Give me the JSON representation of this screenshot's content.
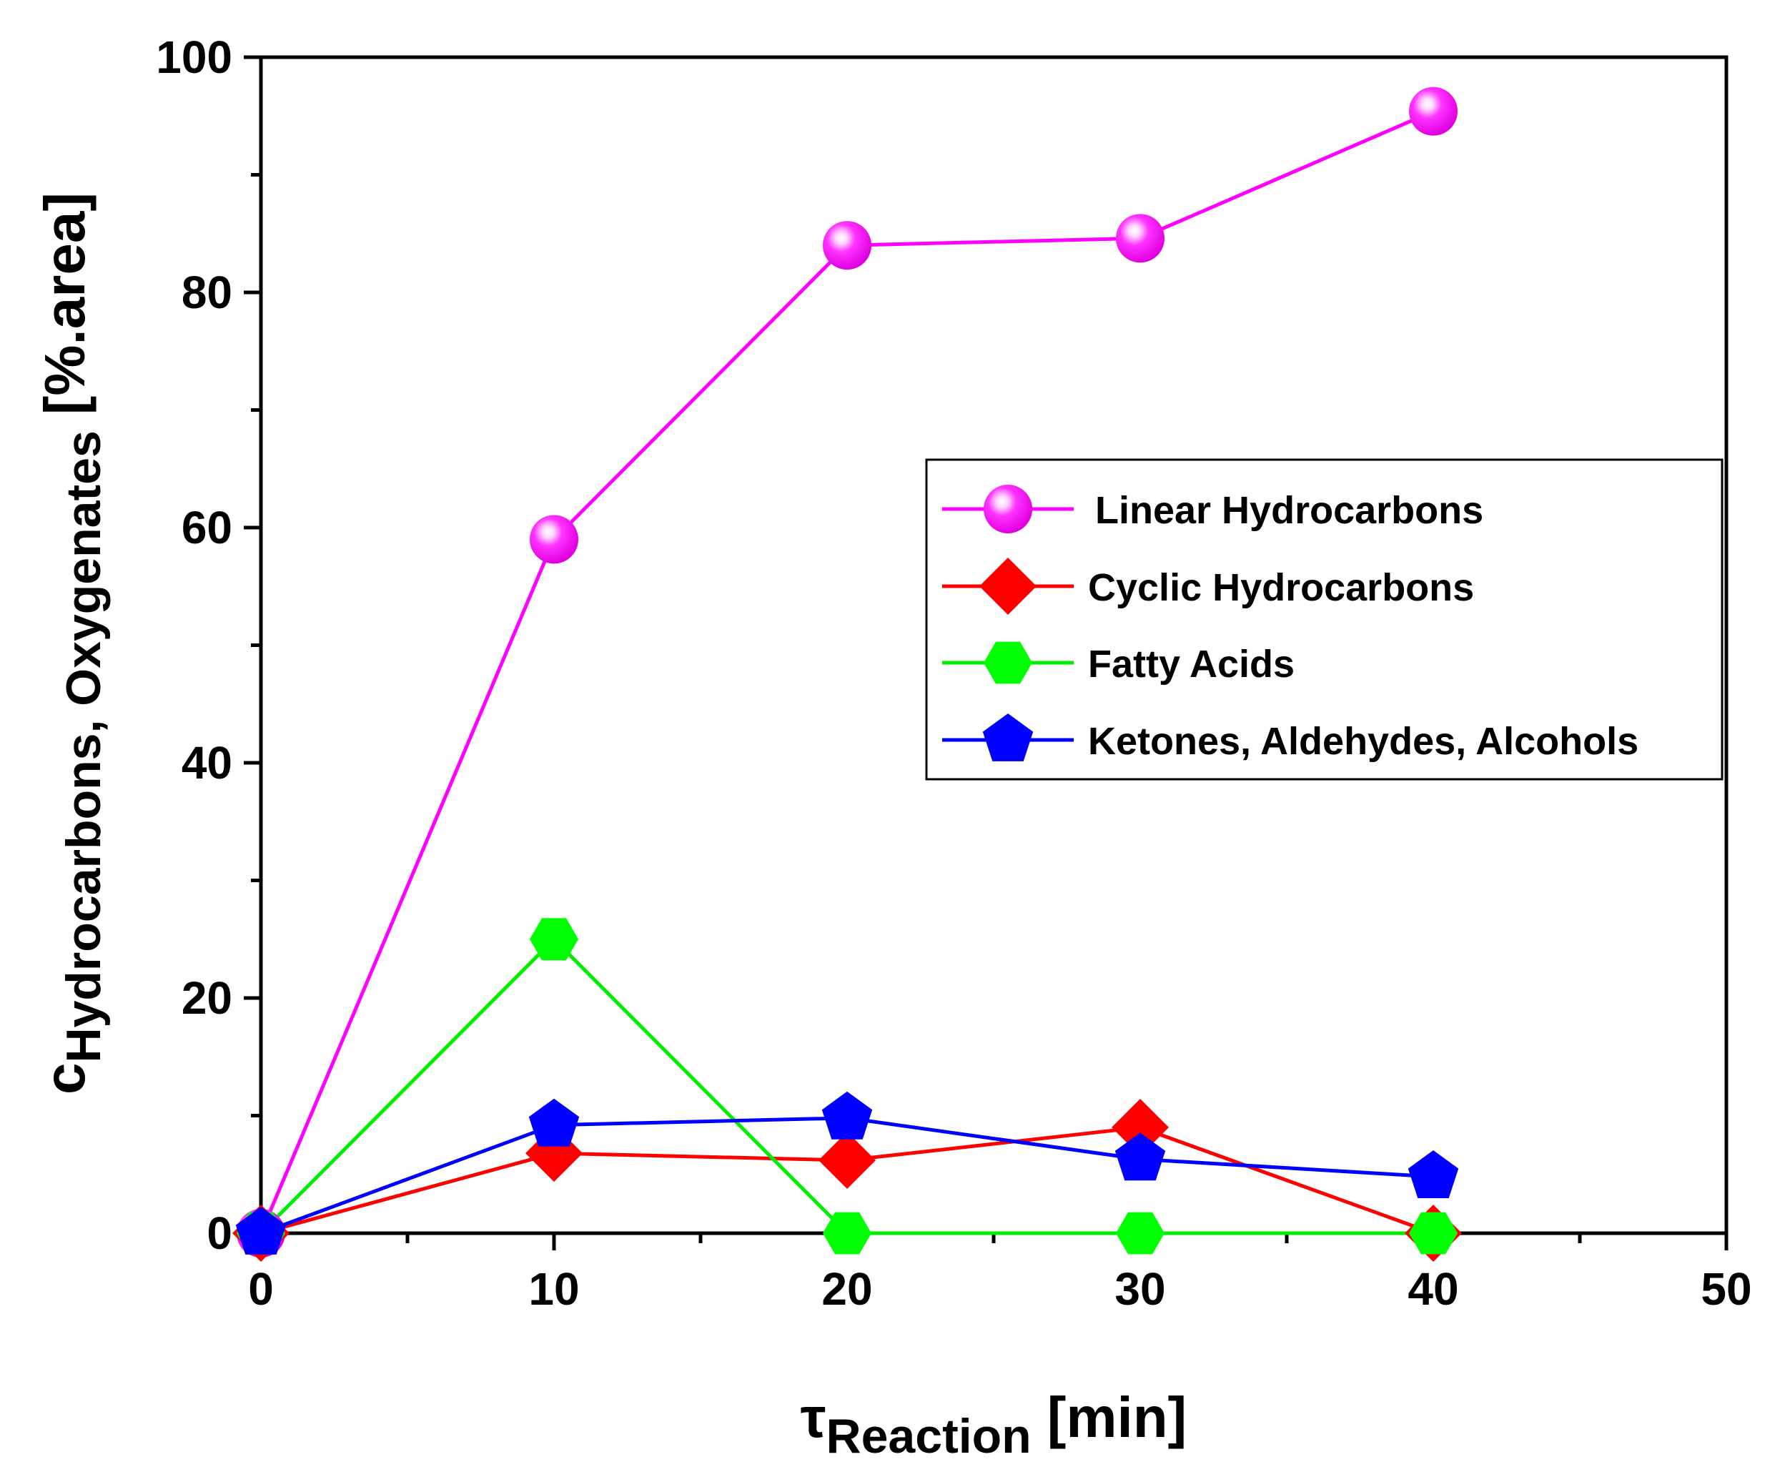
{
  "chart_data": {
    "type": "line",
    "x": [
      0,
      10,
      20,
      30,
      40
    ],
    "series": [
      {
        "name": "Linear Hydrocarbons",
        "values": [
          0,
          59,
          84,
          84.6,
          95.4
        ],
        "color": "#ff00ff",
        "marker": "sphere",
        "marker_color": "#ff00ff"
      },
      {
        "name": "Cyclic Hydrocarbons",
        "values": [
          0,
          6.8,
          6.2,
          9,
          0
        ],
        "color": "#ff0000",
        "marker": "diamond",
        "marker_color": "#ff0000"
      },
      {
        "name": "Fatty Acids",
        "values": [
          0,
          25,
          0,
          0,
          0
        ],
        "color": "#00ee00",
        "marker": "hexagon",
        "marker_color": "#00ff00"
      },
      {
        "name": "Ketones, Aldehydes, Alcohols",
        "values": [
          0,
          9.2,
          9.8,
          6.3,
          4.8
        ],
        "color": "#0000ff",
        "marker": "pentagon",
        "marker_color": "#0000ff"
      }
    ],
    "xlim": [
      0,
      50
    ],
    "ylim": [
      0,
      100
    ],
    "xticks": [
      0,
      10,
      20,
      30,
      40,
      50
    ],
    "yticks": [
      0,
      20,
      40,
      60,
      80,
      100
    ],
    "xlabel": {
      "main": "τ",
      "sub": "Reaction",
      "unit": "[min]"
    },
    "ylabel": {
      "main": "c",
      "sub": "Hydrocarbons, Oxygenates",
      "unit": "[%.area]"
    },
    "legend_position": "right-middle"
  }
}
